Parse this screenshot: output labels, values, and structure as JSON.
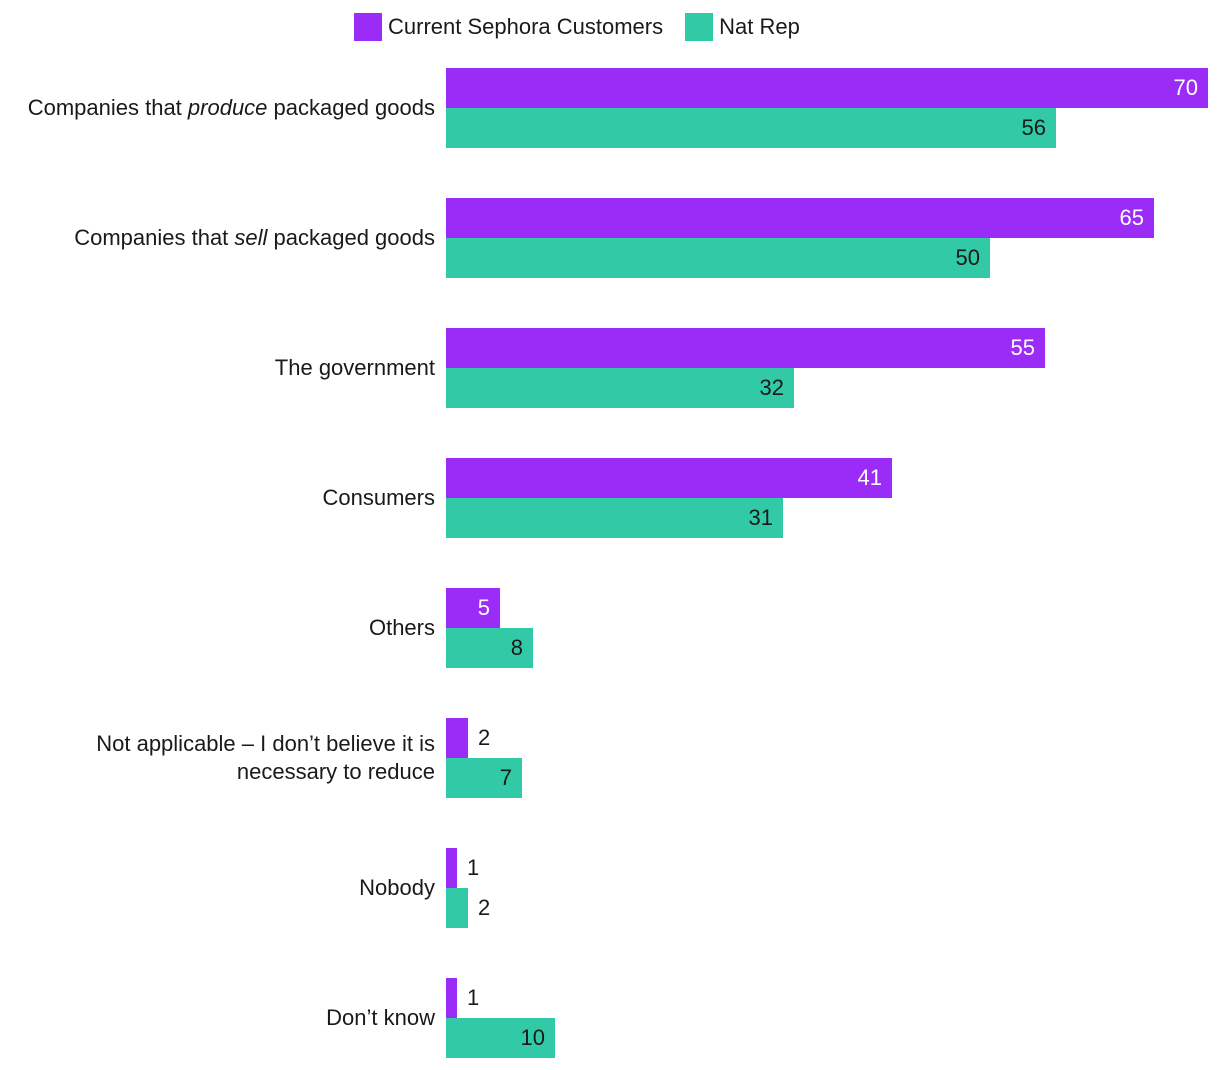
{
  "chart_data": {
    "type": "bar",
    "orientation": "horizontal",
    "title": "",
    "xlabel": "",
    "ylabel": "",
    "xlim": [
      0,
      70
    ],
    "legend_position": "top-center",
    "categories": [
      {
        "parts": [
          "Companies that ",
          "produce",
          " packaged goods"
        ]
      },
      {
        "parts": [
          "Companies that ",
          "sell",
          " packaged goods"
        ]
      },
      {
        "parts": [
          "The government"
        ]
      },
      {
        "parts": [
          "Consumers"
        ]
      },
      {
        "parts": [
          "Others"
        ]
      },
      {
        "parts": [
          "Not applicable – I don’t believe it is necessary to reduce"
        ]
      },
      {
        "parts": [
          "Nobody"
        ]
      },
      {
        "parts": [
          "Don’t know"
        ]
      }
    ],
    "series": [
      {
        "name": "Current Sephora Customers",
        "color": "#9b2cf7",
        "label_color_inside": "#ffffff",
        "values": [
          70,
          65,
          55,
          41,
          5,
          2,
          1,
          1
        ]
      },
      {
        "name": "Nat Rep",
        "color": "#31c9a6",
        "label_color_inside": "#1a1a1a",
        "values": [
          56,
          50,
          32,
          31,
          8,
          7,
          2,
          10
        ]
      }
    ]
  }
}
